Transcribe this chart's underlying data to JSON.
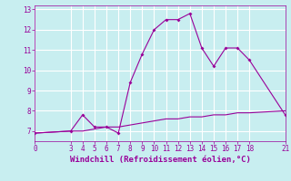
{
  "xlabel": "Windchill (Refroidissement éolien,°C)",
  "line1_x": [
    0,
    3,
    4,
    5,
    6,
    7,
    8,
    9,
    10,
    11,
    12,
    13,
    14,
    15,
    16,
    17,
    18,
    21
  ],
  "line1_y": [
    6.9,
    7.0,
    7.8,
    7.2,
    7.2,
    6.9,
    9.4,
    10.8,
    12.0,
    12.5,
    12.5,
    12.8,
    11.1,
    10.2,
    11.1,
    11.1,
    10.5,
    7.8
  ],
  "line2_x": [
    0,
    3,
    4,
    5,
    6,
    7,
    8,
    9,
    10,
    11,
    12,
    13,
    14,
    15,
    16,
    17,
    18,
    21
  ],
  "line2_y": [
    6.9,
    7.0,
    7.0,
    7.1,
    7.2,
    7.2,
    7.3,
    7.4,
    7.5,
    7.6,
    7.6,
    7.7,
    7.7,
    7.8,
    7.8,
    7.9,
    7.9,
    8.0
  ],
  "line_color": "#990099",
  "bg_color": "#c8eef0",
  "grid_color": "#ffffff",
  "xlabel_color": "#990099",
  "xlim": [
    0,
    21
  ],
  "ylim": [
    6.5,
    13.2
  ],
  "yticks": [
    7,
    8,
    9,
    10,
    11,
    12,
    13
  ],
  "xticks": [
    0,
    3,
    4,
    5,
    6,
    7,
    8,
    9,
    10,
    11,
    12,
    13,
    14,
    15,
    16,
    17,
    18,
    21
  ],
  "tick_fontsize": 5.5,
  "xlabel_fontsize": 6.5
}
